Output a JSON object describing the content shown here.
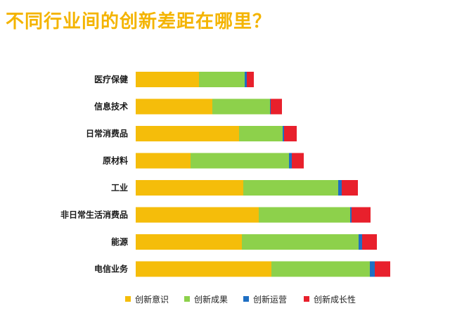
{
  "chart_data": {
    "type": "bar",
    "orientation": "horizontal",
    "stacked": true,
    "title": "不同行业间的创新差距在哪里？",
    "categories": [
      "医疗保健",
      "信息技术",
      "日常消费品",
      "原材料",
      "工业",
      "非日常生活消费品",
      "能源",
      "电信业务"
    ],
    "series": [
      {
        "name": "创新意识",
        "color": "#f5bd0a",
        "values": [
          90,
          109,
          147,
          78,
          153,
          175,
          151,
          193
        ]
      },
      {
        "name": "创新成果",
        "color": "#8dd14b",
        "values": [
          65,
          82,
          62,
          140,
          135,
          130,
          166,
          140
        ]
      },
      {
        "name": "创新运营",
        "color": "#1f6fc3",
        "values": [
          3,
          1,
          2,
          4,
          5,
          2,
          5,
          7
        ]
      },
      {
        "name": "创新成长性",
        "color": "#e8202c",
        "values": [
          10,
          16,
          18,
          17,
          23,
          27,
          21,
          22
        ]
      }
    ],
    "grid": false,
    "legend": "bottom"
  }
}
